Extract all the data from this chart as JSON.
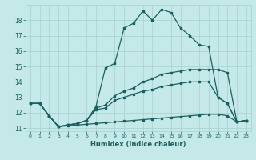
{
  "xlabel": "Humidex (Indice chaleur)",
  "background_color": "#c5e8e8",
  "grid_color": "#a8d0d0",
  "line_color": "#1a6060",
  "xlim": [
    -0.5,
    23.5
  ],
  "ylim": [
    10.8,
    19.0
  ],
  "yticks": [
    11,
    12,
    13,
    14,
    15,
    16,
    17,
    18
  ],
  "xticks": [
    0,
    1,
    2,
    3,
    4,
    5,
    6,
    7,
    8,
    9,
    10,
    11,
    12,
    13,
    14,
    15,
    16,
    17,
    18,
    19,
    20,
    21,
    22,
    23
  ],
  "line_main_x": [
    0,
    1,
    2,
    3,
    4,
    5,
    6,
    7,
    8,
    9,
    10,
    11,
    12,
    13,
    14,
    15,
    16,
    17,
    18,
    19,
    20,
    21,
    22,
    23
  ],
  "line_main_y": [
    12.6,
    12.6,
    11.8,
    11.1,
    11.2,
    11.3,
    11.5,
    12.4,
    14.9,
    15.2,
    17.5,
    17.8,
    18.6,
    18.0,
    18.7,
    18.5,
    17.5,
    17.0,
    16.4,
    16.3,
    13.0,
    12.6,
    11.4,
    11.5
  ],
  "line_upper_x": [
    0,
    1,
    2,
    3,
    4,
    5,
    6,
    7,
    8,
    9,
    10,
    11,
    12,
    13,
    14,
    15,
    16,
    17,
    18,
    19,
    20,
    21,
    22,
    23
  ],
  "line_upper_y": [
    12.6,
    12.6,
    11.8,
    11.1,
    11.2,
    11.3,
    11.5,
    12.3,
    12.5,
    13.1,
    13.4,
    13.6,
    14.0,
    14.2,
    14.5,
    14.6,
    14.7,
    14.8,
    14.8,
    14.8,
    14.8,
    14.6,
    11.4,
    11.5
  ],
  "line_mid_x": [
    0,
    1,
    2,
    3,
    4,
    5,
    6,
    7,
    8,
    9,
    10,
    11,
    12,
    13,
    14,
    15,
    16,
    17,
    18,
    19,
    20,
    21,
    22,
    23
  ],
  "line_mid_y": [
    12.6,
    12.6,
    11.8,
    11.1,
    11.2,
    11.3,
    11.5,
    12.2,
    12.3,
    12.8,
    13.0,
    13.2,
    13.4,
    13.5,
    13.7,
    13.8,
    13.9,
    14.0,
    14.0,
    14.0,
    13.0,
    12.6,
    11.4,
    11.5
  ],
  "line_low_x": [
    0,
    1,
    2,
    3,
    4,
    5,
    6,
    7,
    8,
    9,
    10,
    11,
    12,
    13,
    14,
    15,
    16,
    17,
    18,
    19,
    20,
    21,
    22,
    23
  ],
  "line_low_y": [
    12.6,
    12.6,
    11.8,
    11.1,
    11.15,
    11.2,
    11.25,
    11.3,
    11.35,
    11.4,
    11.45,
    11.5,
    11.55,
    11.6,
    11.65,
    11.7,
    11.75,
    11.8,
    11.85,
    11.9,
    11.9,
    11.8,
    11.4,
    11.5
  ]
}
